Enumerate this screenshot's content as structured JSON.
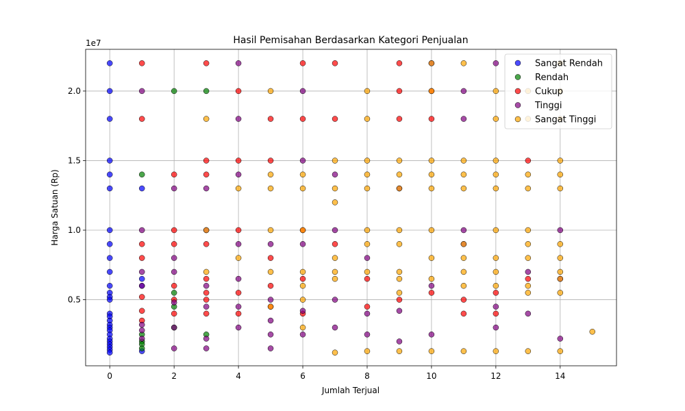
{
  "chart_data": {
    "type": "scatter",
    "title": "Hasil Pemisahan Berdasarkan Kategori Penjualan",
    "xlabel": "Jumlah Terjual",
    "ylabel": "Harga Satuan (Rp)",
    "y_offset_text": "1e7",
    "xlim": [
      -0.75,
      15.75
    ],
    "ylim": [
      250000,
      23000000
    ],
    "xticks": [
      0,
      2,
      4,
      6,
      8,
      10,
      12,
      14
    ],
    "xtick_labels": [
      "0",
      "2",
      "4",
      "6",
      "8",
      "10",
      "12",
      "14"
    ],
    "yticks": [
      5000000,
      10000000,
      15000000,
      20000000
    ],
    "ytick_labels": [
      "0.5",
      "1.0",
      "1.5",
      "2.0"
    ],
    "grid": true,
    "legend_position": "top-right",
    "legend": [
      "Sangat Rendah",
      "Rendah",
      "Cukup",
      "Tinggi",
      "Sangat Tinggi"
    ],
    "series": [
      {
        "name": "Sangat Rendah",
        "color": "#0000ff",
        "x": [
          0,
          0,
          0,
          0,
          0,
          0,
          0,
          0,
          0,
          0,
          0,
          0,
          0,
          0,
          0,
          0,
          0,
          0,
          0,
          0,
          0,
          0,
          0,
          0,
          0,
          0,
          0,
          1,
          1,
          1,
          1
        ],
        "y": [
          22000000,
          20000000,
          18000000,
          15000000,
          14000000,
          13000000,
          10000000,
          9000000,
          8000000,
          7000000,
          6000000,
          5500000,
          5200000,
          5000000,
          4000000,
          3800000,
          3500000,
          3200000,
          3000000,
          2800000,
          2500000,
          2200000,
          2000000,
          1800000,
          1600000,
          1400000,
          1200000,
          13000000,
          6500000,
          6000000,
          1300000
        ]
      },
      {
        "name": "Rendah",
        "color": "#008000",
        "x": [
          1,
          1,
          1,
          1,
          1,
          2,
          2,
          2,
          2,
          3,
          3
        ],
        "y": [
          14000000,
          2500000,
          2000000,
          1800000,
          1500000,
          20000000,
          5500000,
          4500000,
          3000000,
          20000000,
          2500000
        ]
      },
      {
        "name": "Cukup",
        "color": "#ff0000",
        "x": [
          1,
          1,
          1,
          1,
          1,
          1,
          1,
          2,
          2,
          2,
          2,
          2,
          2,
          3,
          3,
          3,
          3,
          3,
          3,
          3,
          3,
          4,
          4,
          4,
          4,
          4,
          5,
          5,
          5,
          5,
          5,
          6,
          6,
          6,
          6,
          6,
          7,
          7,
          7,
          8,
          8,
          9,
          9,
          9,
          9,
          10,
          10,
          10,
          11,
          11,
          12,
          12,
          13,
          13
        ],
        "y": [
          22000000,
          18000000,
          9000000,
          8000000,
          5200000,
          4200000,
          3500000,
          14000000,
          10000000,
          9000000,
          6000000,
          5000000,
          4000000,
          22000000,
          15000000,
          14000000,
          9000000,
          6500000,
          5500000,
          5000000,
          4000000,
          20000000,
          15000000,
          10000000,
          5500000,
          4000000,
          18000000,
          15000000,
          8000000,
          6000000,
          4500000,
          22000000,
          18000000,
          10000000,
          6500000,
          4000000,
          22000000,
          18000000,
          9000000,
          6500000,
          4500000,
          22000000,
          20000000,
          18000000,
          5000000,
          20000000,
          18000000,
          5500000,
          5000000,
          4000000,
          5500000,
          4000000,
          15000000,
          6500000
        ]
      },
      {
        "name": "Tinggi",
        "color": "#800080",
        "x": [
          1,
          1,
          1,
          1,
          1,
          1,
          1,
          2,
          2,
          2,
          2,
          2,
          2,
          3,
          3,
          3,
          3,
          3,
          3,
          4,
          4,
          4,
          4,
          4,
          4,
          4,
          5,
          5,
          5,
          5,
          5,
          6,
          6,
          6,
          6,
          6,
          7,
          7,
          7,
          7,
          8,
          8,
          8,
          9,
          9,
          9,
          10,
          10,
          10,
          11,
          11,
          11,
          11,
          12,
          12,
          12,
          13,
          13,
          14,
          14,
          14
        ],
        "y": [
          20000000,
          10000000,
          7000000,
          6000000,
          3200000,
          2800000,
          2200000,
          13000000,
          8000000,
          7000000,
          4800000,
          3000000,
          1500000,
          13000000,
          10000000,
          6000000,
          4500000,
          2200000,
          1500000,
          22000000,
          18000000,
          14000000,
          9000000,
          6500000,
          4500000,
          3000000,
          9000000,
          5000000,
          3500000,
          2500000,
          1500000,
          20000000,
          15000000,
          9000000,
          4200000,
          2500000,
          14000000,
          10000000,
          5000000,
          3000000,
          8000000,
          4000000,
          2500000,
          13000000,
          4200000,
          2000000,
          22000000,
          6000000,
          2500000,
          20000000,
          18000000,
          10000000,
          9000000,
          22000000,
          4500000,
          3000000,
          7000000,
          4000000,
          10000000,
          6500000,
          2200000
        ]
      },
      {
        "name": "Sangat Tinggi",
        "color": "#ffa500",
        "x": [
          3,
          3,
          3,
          4,
          4,
          5,
          5,
          5,
          5,
          5,
          5,
          6,
          6,
          6,
          6,
          6,
          6,
          6,
          7,
          7,
          7,
          7,
          7,
          7,
          7,
          8,
          8,
          8,
          8,
          8,
          8,
          8,
          8,
          8,
          9,
          9,
          9,
          9,
          9,
          9,
          9,
          9,
          9,
          10,
          10,
          10,
          10,
          10,
          10,
          10,
          10,
          10,
          11,
          11,
          11,
          11,
          11,
          11,
          11,
          11,
          11,
          12,
          12,
          12,
          12,
          12,
          12,
          12,
          12,
          12,
          12,
          13,
          13,
          13,
          13,
          13,
          13,
          13,
          13,
          13,
          13,
          14,
          14,
          14,
          14,
          14,
          14,
          14,
          14,
          14,
          14,
          14,
          14,
          15
        ],
        "y": [
          18000000,
          10000000,
          7000000,
          13000000,
          8000000,
          20000000,
          14000000,
          13000000,
          10000000,
          7000000,
          4500000,
          14000000,
          13000000,
          10000000,
          7000000,
          6000000,
          5000000,
          3000000,
          15000000,
          13000000,
          12000000,
          8000000,
          7000000,
          6500000,
          1200000,
          20000000,
          18000000,
          15000000,
          14000000,
          13000000,
          10000000,
          9000000,
          7000000,
          1300000,
          15000000,
          14000000,
          13000000,
          10000000,
          9000000,
          7000000,
          6500000,
          5500000,
          1300000,
          22000000,
          20000000,
          15000000,
          14000000,
          13000000,
          10000000,
          8000000,
          6500000,
          1300000,
          22000000,
          15000000,
          14000000,
          13000000,
          9000000,
          8000000,
          7000000,
          6000000,
          1300000,
          20000000,
          18000000,
          15000000,
          14000000,
          13000000,
          10000000,
          8000000,
          7000000,
          6000000,
          1300000,
          20000000,
          18000000,
          14000000,
          13000000,
          10000000,
          9000000,
          8000000,
          6000000,
          5500000,
          1300000,
          22000000,
          20000000,
          18000000,
          15000000,
          14000000,
          13000000,
          9000000,
          8000000,
          7000000,
          6500000,
          5500000,
          1300000,
          2700000
        ]
      }
    ]
  }
}
